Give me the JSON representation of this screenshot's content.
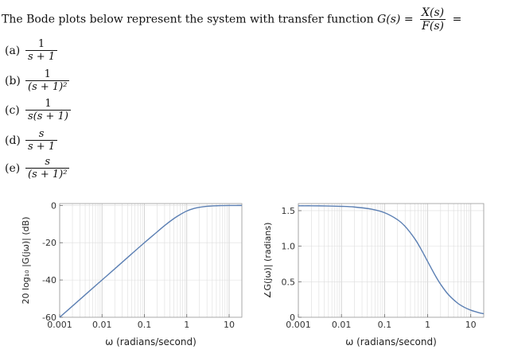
{
  "question": {
    "text": "The Bode plots below represent the system with transfer function",
    "lhs": "G(s) =",
    "frac_num": "X(s)",
    "frac_den": "F(s)",
    "trail": "="
  },
  "options": [
    {
      "letter": "(a)",
      "num": "1",
      "den": "s + 1"
    },
    {
      "letter": "(b)",
      "num": "1",
      "den": "(s + 1)²"
    },
    {
      "letter": "(c)",
      "num": "1",
      "den": "s(s + 1)"
    },
    {
      "letter": "(d)",
      "num": "s",
      "den": "s + 1"
    },
    {
      "letter": "(e)",
      "num": "s",
      "den": "(s + 1)²"
    }
  ],
  "colors": {
    "curve": "#5b7fb3",
    "grid": "#dddddd",
    "frame": "#999999"
  },
  "chart_data": [
    {
      "type": "line",
      "xscale": "log",
      "xlim": [
        0.001,
        20
      ],
      "ylim": [
        -60,
        1
      ],
      "xticks": [
        0.001,
        0.01,
        0.1,
        1,
        10
      ],
      "xtick_labels": [
        "0.001",
        "0.01",
        "0.1",
        "1",
        "10"
      ],
      "yticks": [
        -60,
        -40,
        -20,
        0
      ],
      "ytick_labels": [
        "-60",
        "-40",
        "-20",
        "0"
      ],
      "xlabel": "ω (radians/second)",
      "ylabel": "20 log₁₀ |G(jω)| (dB)",
      "x": [
        0.001,
        0.002,
        0.005,
        0.01,
        0.02,
        0.05,
        0.1,
        0.2,
        0.3,
        0.5,
        0.7,
        1,
        1.5,
        2,
        3,
        5,
        7,
        10,
        15,
        20
      ],
      "y": [
        -60,
        -54,
        -46,
        -40,
        -34,
        -26,
        -20,
        -14.2,
        -10.8,
        -7,
        -4.9,
        -3,
        -1.6,
        -1,
        -0.46,
        -0.17,
        -0.09,
        -0.04,
        -0.02,
        -0.01
      ]
    },
    {
      "type": "line",
      "xscale": "log",
      "xlim": [
        0.001,
        20
      ],
      "ylim": [
        0,
        1.6
      ],
      "xticks": [
        0.001,
        0.01,
        0.1,
        1,
        10
      ],
      "xtick_labels": [
        "0.001",
        "0.01",
        "0.1",
        "1",
        "10"
      ],
      "yticks": [
        0,
        0.5,
        1.0,
        1.5
      ],
      "ytick_labels": [
        "0",
        "0.5",
        "1.0",
        "1.5"
      ],
      "xlabel": "ω (radians/second)",
      "ylabel": "∠G(jω)| (radians)",
      "x": [
        0.001,
        0.002,
        0.005,
        0.01,
        0.02,
        0.05,
        0.1,
        0.2,
        0.3,
        0.5,
        0.7,
        1,
        1.5,
        2,
        3,
        5,
        7,
        10,
        15,
        20
      ],
      "y": [
        1.569,
        1.569,
        1.566,
        1.561,
        1.551,
        1.521,
        1.471,
        1.373,
        1.279,
        1.107,
        0.96,
        0.785,
        0.588,
        0.464,
        0.322,
        0.197,
        0.142,
        0.0997,
        0.0666,
        0.05
      ]
    }
  ]
}
